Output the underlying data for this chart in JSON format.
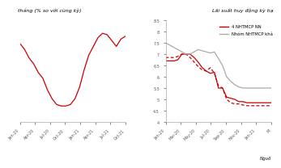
{
  "left_title": "tháng (% so với cùng kỳ)",
  "left_xticks": [
    "Jan-20",
    "Apr-20",
    "Jul-20",
    "Oct-20",
    "Jan-21",
    "Apr-21",
    "Jul-21",
    "Oct-21"
  ],
  "left_x": [
    0,
    1,
    2,
    3,
    4,
    5,
    6,
    7,
    8,
    9,
    10,
    11,
    12,
    13,
    14,
    15,
    16,
    17,
    18,
    19,
    20,
    21,
    22,
    23
  ],
  "left_y": [
    6.2,
    6.0,
    5.7,
    5.5,
    5.2,
    5.0,
    4.6,
    4.3,
    4.1,
    4.05,
    4.05,
    4.1,
    4.3,
    4.7,
    5.3,
    5.8,
    6.1,
    6.4,
    6.55,
    6.5,
    6.3,
    6.1,
    6.35,
    6.45
  ],
  "left_color": "#cc0000",
  "left_ylim": [
    3.5,
    7.0
  ],
  "right_title": "Lãi suất huy động kỳ hạ",
  "right_legend1": "4 NHTMCP NN",
  "right_legend2": "Nhóm NHTMCP khả",
  "right_xticks": [
    "Jan-20",
    "Mar-20",
    "May-20",
    "Jul-20",
    "Sep-20",
    "Nov-20",
    "Jan-21",
    "M"
  ],
  "right_x": [
    0,
    1,
    2,
    3,
    4,
    5,
    6,
    7,
    8,
    9,
    10,
    11,
    12,
    13,
    14,
    15,
    16,
    17,
    18,
    19,
    20,
    21,
    22,
    23,
    24,
    25,
    26
  ],
  "red_solid_y": [
    6.7,
    6.7,
    6.7,
    6.75,
    7.0,
    7.0,
    7.0,
    6.85,
    6.65,
    6.4,
    6.25,
    6.15,
    6.2,
    5.5,
    5.5,
    5.1,
    5.05,
    5.0,
    4.9,
    4.9,
    4.85,
    4.85,
    4.85,
    4.85,
    4.85,
    4.85,
    4.85
  ],
  "red_dashed_y": [
    6.85,
    6.85,
    6.85,
    6.9,
    7.0,
    7.0,
    6.85,
    6.65,
    6.45,
    6.3,
    6.25,
    6.4,
    6.15,
    5.6,
    5.5,
    5.0,
    4.85,
    4.8,
    4.8,
    4.75,
    4.72,
    4.72,
    4.72,
    4.72,
    4.72,
    4.72,
    4.72
  ],
  "gray_solid_y": [
    7.5,
    7.4,
    7.3,
    7.2,
    7.1,
    7.0,
    7.0,
    7.1,
    7.2,
    7.15,
    7.1,
    7.05,
    7.1,
    6.8,
    6.5,
    6.0,
    5.8,
    5.65,
    5.55,
    5.5,
    5.5,
    5.5,
    5.5,
    5.5,
    5.5,
    5.5,
    5.5
  ],
  "red_color": "#cc0000",
  "gray_color": "#aaaaaa",
  "ylim_right": [
    4.0,
    8.5
  ],
  "right_yticks": [
    4.0,
    4.5,
    5.0,
    5.5,
    6.0,
    6.5,
    7.0,
    7.5,
    8.0,
    8.5
  ],
  "source_text": "Nguồ"
}
